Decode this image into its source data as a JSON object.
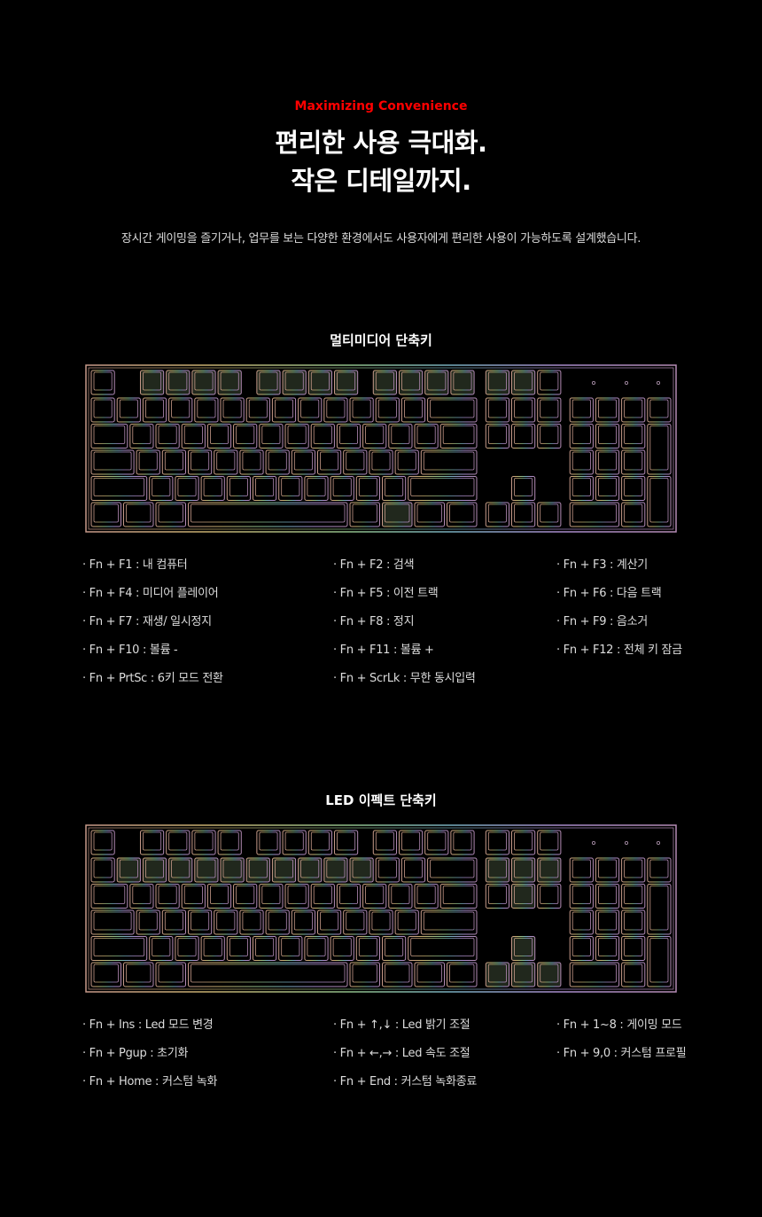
{
  "header": {
    "eyebrow": "Maximizing Convenience",
    "title_line1": "편리한 사용 극대화.",
    "title_line2": "작은 디테일까지.",
    "description": "장시간 게이밍을 즐기거나, 업무를 보는 다양한 환경에서도 사용자에게 편리한 사용이 가능하도록 설계했습니다."
  },
  "colors": {
    "eyebrow": "#ff0000",
    "background": "#000000",
    "text": "#dddddd"
  },
  "multimedia": {
    "title": "멀티미디어 단축키",
    "items": [
      "· Fn + F1 : 내 컴퓨터",
      "· Fn + F2 : 검색",
      "· Fn + F3 : 계산기",
      "· Fn + F4 : 미디어 플레이어",
      "· Fn + F5 : 이전 트랙",
      "· Fn + F6 : 다음 트랙",
      "· Fn + F7 : 재생/ 일시정지",
      "· Fn + F8 : 정지",
      "· Fn + F9 : 음소거",
      "· Fn + F10 : 볼륨 -",
      "· Fn + F11 : 볼륨 +",
      "· Fn + F12 : 전체 키 잠금",
      "· Fn + PrtSc : 6키 모드 전환",
      "· Fn + ScrLk : 무한 동시입력"
    ]
  },
  "led": {
    "title": "LED 이펙트 단축키",
    "items": [
      "· Fn + Ins : Led 모드 변경",
      "· Fn + ↑,↓ : Led 밝기 조절",
      "· Fn + 1~8 : 게이밍 모드",
      "· Fn + Pgup :  초기화",
      "· Fn + ←,→ : Led 속도 조절",
      "· Fn + 9,0 : 커스텀 프로필",
      "· Fn + Home : 커스텀 녹화",
      "· Fn + End : 커스텀 녹화종료"
    ]
  }
}
